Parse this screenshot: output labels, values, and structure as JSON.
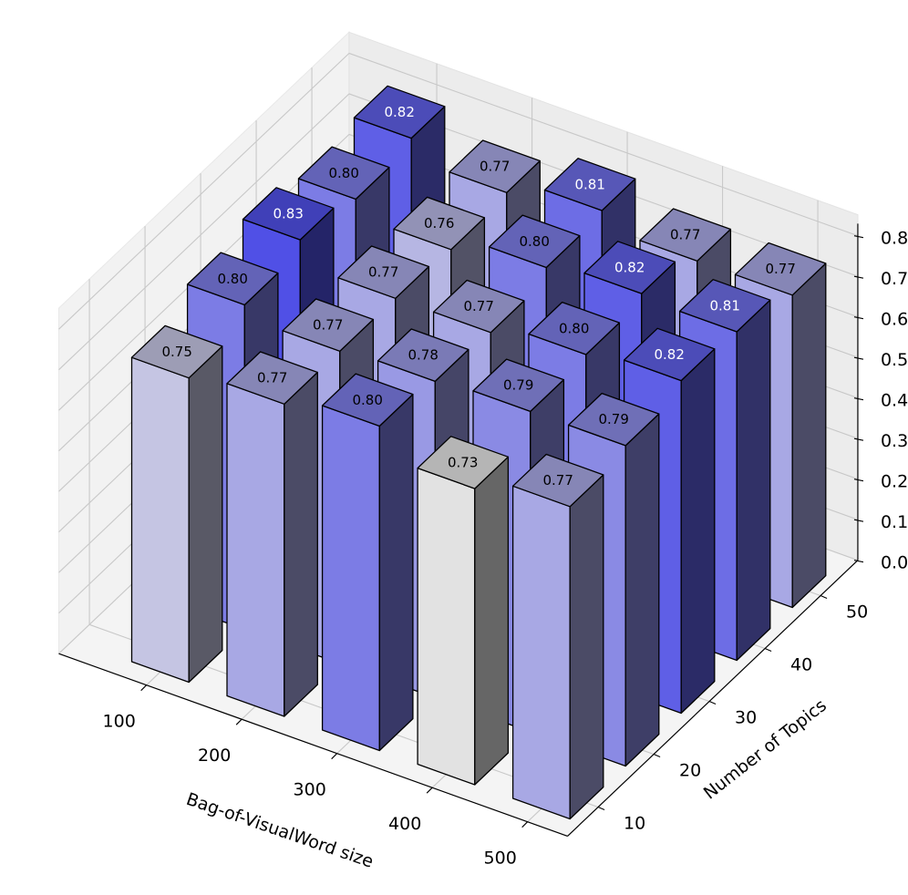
{
  "chart_data": {
    "type": "bar3d",
    "title": "",
    "xlabel": "Bag-of-VisualWord size",
    "ylabel": "Number of Topics",
    "zlabel": "",
    "x_categories": [
      "100",
      "200",
      "300",
      "400",
      "500"
    ],
    "y_categories": [
      "10",
      "20",
      "30",
      "40",
      "50"
    ],
    "z_ticks": [
      "0.0",
      "0.1",
      "0.2",
      "0.3",
      "0.4",
      "0.5",
      "0.6",
      "0.7",
      "0.8"
    ],
    "zlim": [
      0,
      0.85
    ],
    "grid": true,
    "values": [
      [
        0.75,
        0.8,
        0.83,
        0.8,
        0.82
      ],
      [
        0.77,
        0.77,
        0.77,
        0.76,
        0.77
      ],
      [
        0.8,
        0.78,
        0.77,
        0.8,
        0.81
      ],
      [
        0.73,
        0.79,
        0.8,
        0.82,
        0.77
      ],
      [
        0.77,
        0.79,
        0.82,
        0.81,
        0.77
      ]
    ],
    "value_labels": [
      [
        "0.75",
        "0.80",
        "0.83",
        "0.80",
        "0.82"
      ],
      [
        "0.77",
        "0.77",
        "0.77",
        "0.76",
        "0.77"
      ],
      [
        "0.80",
        "0.78",
        "0.77",
        "0.80",
        "0.81"
      ],
      [
        "0.73",
        "0.79",
        "0.80",
        "0.82",
        "0.77"
      ],
      [
        "0.77",
        "0.79",
        "0.82",
        "0.81",
        "0.77"
      ]
    ],
    "colormap": {
      "low": "#e2e2e2",
      "high": "#5050e6"
    }
  }
}
